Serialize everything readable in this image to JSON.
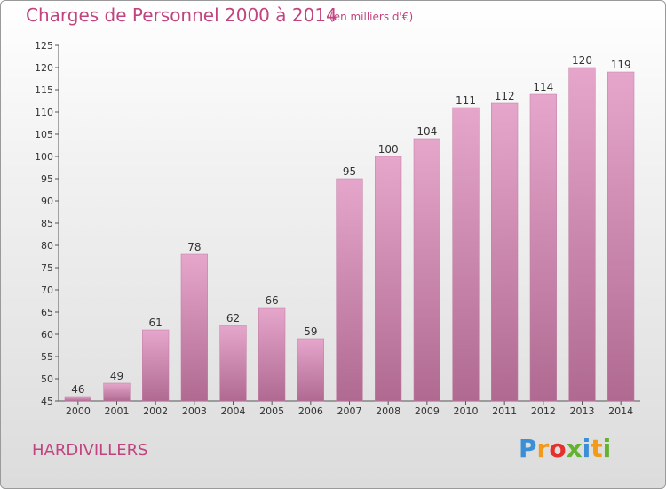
{
  "chart_data": {
    "type": "bar",
    "title": "Charges de Personnel 2000 à 2014",
    "subtitle": "(en milliers d'€)",
    "xlabel": "",
    "ylabel": "",
    "categories": [
      "2000",
      "2001",
      "2002",
      "2003",
      "2004",
      "2005",
      "2006",
      "2007",
      "2008",
      "2009",
      "2010",
      "2011",
      "2012",
      "2013",
      "2014"
    ],
    "values": [
      46,
      49,
      61,
      78,
      62,
      66,
      59,
      95,
      100,
      104,
      111,
      112,
      114,
      120,
      119
    ],
    "ylim": [
      45,
      125
    ],
    "yticks": [
      45,
      50,
      55,
      60,
      65,
      70,
      75,
      80,
      85,
      90,
      95,
      100,
      105,
      110,
      115,
      120,
      125
    ],
    "grid": false,
    "show_data_labels": true
  },
  "footer": {
    "town": "HARDIVILLERS",
    "logo_letters": [
      "P",
      "r",
      "o",
      "x",
      "i",
      "t",
      "i"
    ],
    "logo_colors": [
      "#3a8fd6",
      "#f29a1a",
      "#e5302c",
      "#63b32e",
      "#3a8fd6",
      "#f29a1a",
      "#63b32e"
    ]
  },
  "colors": {
    "title": "#c2447e",
    "bar_top": "#e6a6cb",
    "bar_bottom": "#b06a91",
    "axis": "#555555",
    "text": "#333333"
  }
}
